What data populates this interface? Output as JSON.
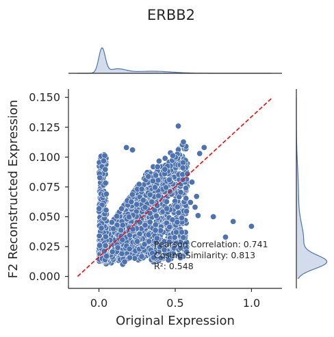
{
  "chart_data": {
    "type": "scatter",
    "title": "ERBB2",
    "xlabel": "Original Expression",
    "ylabel": "F2 Reconstructed Expression",
    "xlim": [
      -0.2,
      1.2
    ],
    "ylim": [
      -0.01,
      0.157
    ],
    "xticks": [
      "0.0",
      "0.5",
      "1.0"
    ],
    "xtick_values": [
      0.0,
      0.5,
      1.0
    ],
    "yticks": [
      "0.000",
      "0.025",
      "0.050",
      "0.075",
      "0.100",
      "0.125",
      "0.150"
    ],
    "ytick_values": [
      0.0,
      0.025,
      0.05,
      0.075,
      0.1,
      0.125,
      0.15
    ],
    "grid": false,
    "point_color": "#4c72b0",
    "identity_line": {
      "color": "#ff0000",
      "style": "dashed",
      "from": [
        -0.14,
        0.0
      ],
      "to": [
        1.13,
        0.149
      ]
    },
    "annotations": [
      "Pearson Correlation: 0.741",
      "Cosine Similarity: 0.813",
      "R²: 0.548"
    ],
    "marginals": {
      "top": "kde of Original Expression",
      "right": "kde of F2 Reconstructed Expression"
    },
    "outlier_points": [
      {
        "x": 0.52,
        "y": 0.126
      },
      {
        "x": 0.18,
        "y": 0.108
      },
      {
        "x": 0.22,
        "y": 0.106
      },
      {
        "x": 0.66,
        "y": 0.103
      },
      {
        "x": 0.69,
        "y": 0.108
      },
      {
        "x": 0.55,
        "y": 0.091
      },
      {
        "x": 0.58,
        "y": 0.086
      },
      {
        "x": 0.61,
        "y": 0.079
      },
      {
        "x": 0.64,
        "y": 0.067
      },
      {
        "x": 0.6,
        "y": 0.062
      },
      {
        "x": 0.63,
        "y": 0.058
      },
      {
        "x": 0.65,
        "y": 0.051
      },
      {
        "x": 0.75,
        "y": 0.05
      },
      {
        "x": 0.88,
        "y": 0.046
      },
      {
        "x": 1.0,
        "y": 0.042
      },
      {
        "x": 0.83,
        "y": 0.033
      },
      {
        "x": 0.57,
        "y": 0.074
      },
      {
        "x": 0.55,
        "y": 0.081
      }
    ]
  }
}
